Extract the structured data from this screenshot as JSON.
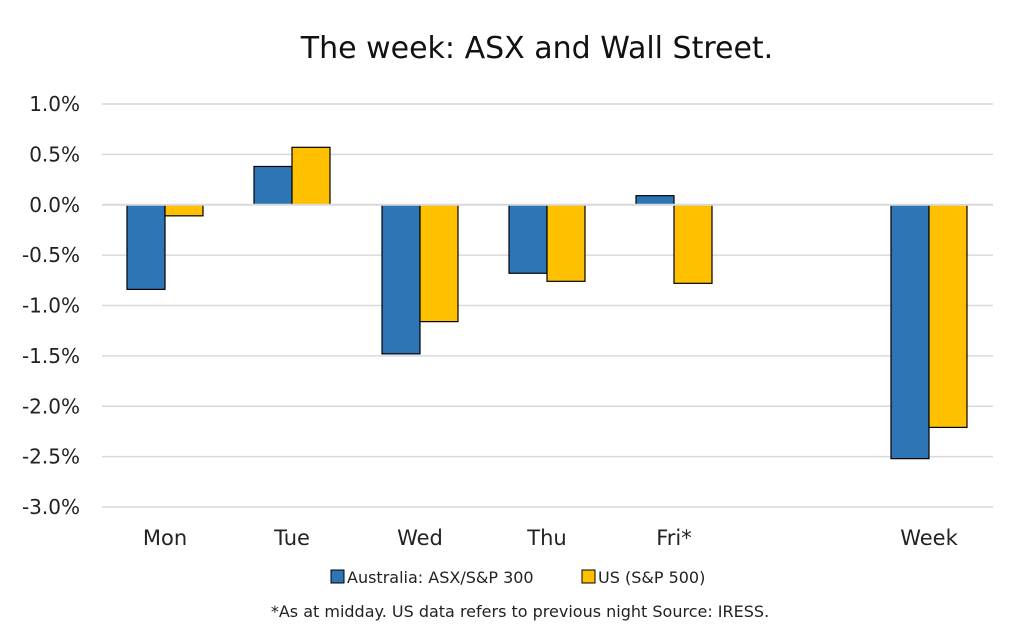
{
  "chart_data": {
    "type": "bar",
    "title": "The week:  ASX and Wall Street.",
    "categories": [
      "Mon",
      "Tue",
      "Wed",
      "Thu",
      "Fri*",
      "Week"
    ],
    "series": [
      {
        "name": "Australia: ASX/S&P 300",
        "values": [
          -0.84,
          0.38,
          -1.48,
          -0.68,
          0.09,
          -2.52
        ],
        "color": "#2E75B6"
      },
      {
        "name": "US (S&P 500)",
        "values": [
          -0.11,
          0.57,
          -1.16,
          -0.76,
          -0.78,
          -2.21
        ],
        "color": "#FFC000"
      }
    ],
    "ylim": [
      -3.0,
      1.0
    ],
    "yticks": [
      "1.0%",
      "0.5%",
      "0.0%",
      "-0.5%",
      "-1.0%",
      "-1.5%",
      "-2.0%",
      "-2.5%",
      "-3.0%"
    ],
    "grid": true,
    "legend": "bottom",
    "footnote": "*As at midday. US data refers to previous night  Source:  IRESS."
  }
}
